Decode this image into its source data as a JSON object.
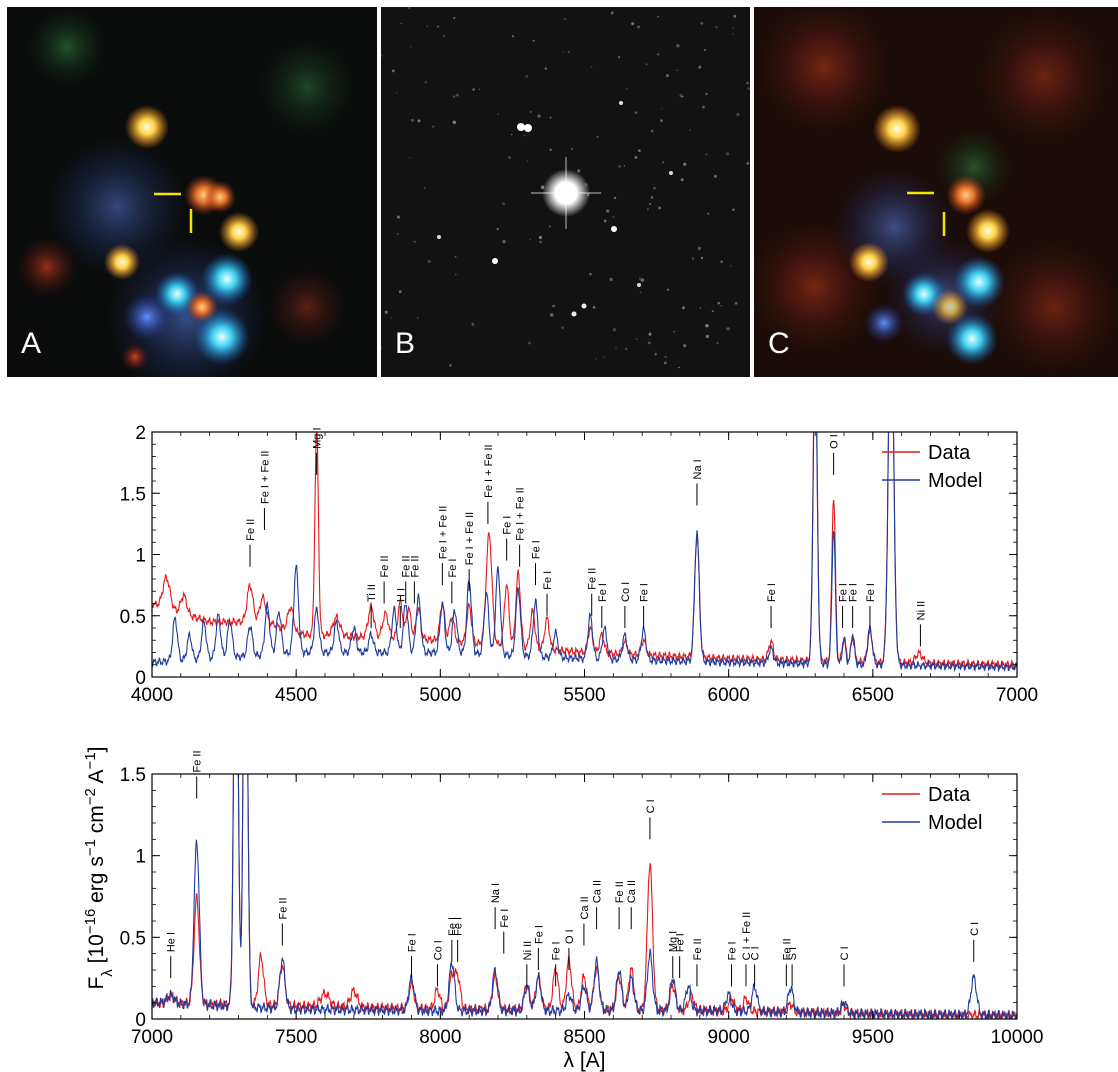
{
  "image_panels": [
    {
      "letter": "A",
      "description_icon": "false-color-field-image"
    },
    {
      "letter": "B",
      "description_icon": "greyscale-star-field-image"
    },
    {
      "letter": "C",
      "description_icon": "false-color-field-image"
    }
  ],
  "colors": {
    "data": "#e31a1c",
    "model": "#1f3b9b",
    "marker": "#f2e600"
  },
  "shared_ylabel": "F_λ [10^-16 erg s^-1 cm^-2 A^-1]",
  "chart_data": [
    {
      "type": "line",
      "xlim": [
        4000,
        7000
      ],
      "ylim": [
        0,
        2
      ],
      "xticks": [
        4000,
        4500,
        5000,
        5500,
        6000,
        6500,
        7000
      ],
      "yticks": [
        0,
        0.5,
        1,
        1.5,
        2
      ],
      "ytick_labels": [
        "0",
        "0.5",
        "1",
        "1.5",
        "2"
      ],
      "legend_position": "top-right",
      "series": [
        {
          "name": "Data",
          "color": "#e31a1c",
          "continuum": [
            [
              4000,
              0.6
            ],
            [
              4200,
              0.45
            ],
            [
              4400,
              0.45
            ],
            [
              4500,
              0.35
            ],
            [
              5000,
              0.3
            ],
            [
              5500,
              0.2
            ],
            [
              6000,
              0.15
            ],
            [
              6500,
              0.12
            ],
            [
              7000,
              0.1
            ]
          ],
          "lines": [
            [
              4050,
              0.25,
              12
            ],
            [
              4110,
              0.15,
              10
            ],
            [
              4340,
              0.3,
              10
            ],
            [
              4384,
              0.2,
              10
            ],
            [
              4481,
              0.2,
              10
            ],
            [
              4571,
              1.7,
              6
            ],
            [
              4640,
              0.15,
              12
            ],
            [
              4760,
              0.25,
              10
            ],
            [
              4810,
              0.2,
              10
            ],
            [
              4861,
              0.3,
              8
            ],
            [
              4890,
              0.25,
              8
            ],
            [
              4924,
              0.25,
              8
            ],
            [
              5007,
              0.3,
              8
            ],
            [
              5040,
              0.2,
              8
            ],
            [
              5100,
              0.3,
              8
            ],
            [
              5169,
              0.9,
              10
            ],
            [
              5230,
              0.5,
              8
            ],
            [
              5270,
              0.6,
              8
            ],
            [
              5320,
              0.3,
              8
            ],
            [
              5370,
              0.25,
              8
            ],
            [
              5520,
              0.2,
              8
            ],
            [
              5560,
              0.15,
              8
            ],
            [
              5640,
              0.1,
              8
            ],
            [
              5705,
              0.12,
              8
            ],
            [
              5890,
              1.0,
              8
            ],
            [
              6147,
              0.15,
              8
            ],
            [
              6300,
              2.6,
              7
            ],
            [
              6364,
              1.35,
              6
            ],
            [
              6400,
              0.2,
              6
            ],
            [
              6430,
              0.2,
              6
            ],
            [
              6490,
              0.25,
              8
            ],
            [
              6563,
              3.0,
              9
            ],
            [
              6660,
              0.08,
              12
            ]
          ]
        },
        {
          "name": "Model",
          "color": "#1f3b9b",
          "continuum": [
            [
              4000,
              0.12
            ],
            [
              4400,
              0.18
            ],
            [
              4500,
              0.2
            ],
            [
              5000,
              0.2
            ],
            [
              5500,
              0.15
            ],
            [
              6000,
              0.12
            ],
            [
              6500,
              0.1
            ],
            [
              7000,
              0.08
            ]
          ],
          "lines": [
            [
              4080,
              0.35,
              8
            ],
            [
              4130,
              0.2,
              8
            ],
            [
              4180,
              0.3,
              8
            ],
            [
              4230,
              0.35,
              8
            ],
            [
              4270,
              0.3,
              8
            ],
            [
              4340,
              0.25,
              8
            ],
            [
              4400,
              0.4,
              8
            ],
            [
              4440,
              0.35,
              8
            ],
            [
              4500,
              0.7,
              8
            ],
            [
              4571,
              0.35,
              8
            ],
            [
              4640,
              0.25,
              8
            ],
            [
              4700,
              0.2,
              8
            ],
            [
              4760,
              0.15,
              8
            ],
            [
              4840,
              0.35,
              8
            ],
            [
              4880,
              0.4,
              8
            ],
            [
              4924,
              0.45,
              8
            ],
            [
              5007,
              0.4,
              8
            ],
            [
              5050,
              0.35,
              8
            ],
            [
              5100,
              0.6,
              8
            ],
            [
              5160,
              0.5,
              8
            ],
            [
              5200,
              0.7,
              8
            ],
            [
              5270,
              0.55,
              8
            ],
            [
              5330,
              0.45,
              8
            ],
            [
              5400,
              0.2,
              8
            ],
            [
              5520,
              0.35,
              8
            ],
            [
              5570,
              0.25,
              8
            ],
            [
              5640,
              0.2,
              8
            ],
            [
              5705,
              0.25,
              8
            ],
            [
              5890,
              1.05,
              8
            ],
            [
              6147,
              0.12,
              8
            ],
            [
              6300,
              2.5,
              7
            ],
            [
              6364,
              1.1,
              6
            ],
            [
              6400,
              0.2,
              6
            ],
            [
              6430,
              0.25,
              6
            ],
            [
              6490,
              0.3,
              8
            ],
            [
              6563,
              3.0,
              9
            ]
          ]
        }
      ],
      "line_ids": [
        {
          "label": "Fe II",
          "x": 4340,
          "y": 0.9
        },
        {
          "label": "Fe I + Fe II",
          "x": 4390,
          "y": 1.2
        },
        {
          "label": "Mg I",
          "x": 4571,
          "y": 1.65
        },
        {
          "label": "Ti II",
          "x": 4760,
          "y": 0.4
        },
        {
          "label": "Fe II",
          "x": 4805,
          "y": 0.6
        },
        {
          "label": "H I",
          "x": 4861,
          "y": 0.4
        },
        {
          "label": "Fe II",
          "x": 4880,
          "y": 0.6
        },
        {
          "label": "Fe II",
          "x": 4910,
          "y": 0.6
        },
        {
          "label": "Fe I + Fe II",
          "x": 5007,
          "y": 0.75
        },
        {
          "label": "Fe I",
          "x": 5040,
          "y": 0.6
        },
        {
          "label": "Fe I + Fe II",
          "x": 5100,
          "y": 0.7
        },
        {
          "label": "Fe I + Fe II",
          "x": 5165,
          "y": 1.25
        },
        {
          "label": "Fe I",
          "x": 5230,
          "y": 0.95
        },
        {
          "label": "Fe I + Fe II",
          "x": 5275,
          "y": 0.9
        },
        {
          "label": "Fe I",
          "x": 5330,
          "y": 0.75
        },
        {
          "label": "Fe I",
          "x": 5370,
          "y": 0.5
        },
        {
          "label": "Fe II",
          "x": 5525,
          "y": 0.5
        },
        {
          "label": "Fe I",
          "x": 5560,
          "y": 0.4
        },
        {
          "label": "Co I",
          "x": 5640,
          "y": 0.4
        },
        {
          "label": "Fe I",
          "x": 5705,
          "y": 0.4
        },
        {
          "label": "Na I",
          "x": 5890,
          "y": 1.4
        },
        {
          "label": "Fe I",
          "x": 6147,
          "y": 0.4
        },
        {
          "label": "O I",
          "x": 6364,
          "y": 1.65
        },
        {
          "label": "Fe I",
          "x": 6395,
          "y": 0.4
        },
        {
          "label": "Fe I",
          "x": 6430,
          "y": 0.4
        },
        {
          "label": "Fe I",
          "x": 6490,
          "y": 0.4
        },
        {
          "label": "Ni II",
          "x": 6665,
          "y": 0.25
        }
      ]
    },
    {
      "type": "line",
      "xlim": [
        7000,
        10000
      ],
      "ylim": [
        0,
        1.5
      ],
      "xticks": [
        7000,
        7500,
        8000,
        8500,
        9000,
        9500,
        10000
      ],
      "yticks": [
        0,
        0.5,
        1,
        1.5
      ],
      "ytick_labels": [
        "0",
        "0.5",
        "1",
        "1.5"
      ],
      "xlabel": "λ [A]",
      "legend_position": "top-right",
      "series": [
        {
          "name": "Data",
          "color": "#e31a1c",
          "continuum": [
            [
              7000,
              0.1
            ],
            [
              7500,
              0.08
            ],
            [
              8000,
              0.06
            ],
            [
              8500,
              0.06
            ],
            [
              9000,
              0.05
            ],
            [
              9500,
              0.03
            ],
            [
              10000,
              0.02
            ]
          ],
          "lines": [
            [
              7065,
              0.05,
              12
            ],
            [
              7155,
              0.65,
              9
            ],
            [
              7291,
              3.0,
              7
            ],
            [
              7324,
              3.0,
              7
            ],
            [
              7378,
              0.3,
              9
            ],
            [
              7452,
              0.25,
              9
            ],
            [
              7600,
              0.08,
              15
            ],
            [
              7700,
              0.1,
              12
            ],
            [
              7900,
              0.15,
              9
            ],
            [
              7990,
              0.12,
              9
            ],
            [
              8040,
              0.2,
              9
            ],
            [
              8060,
              0.2,
              9
            ],
            [
              8190,
              0.2,
              9
            ],
            [
              8300,
              0.15,
              9
            ],
            [
              8340,
              0.2,
              9
            ],
            [
              8400,
              0.25,
              9
            ],
            [
              8446,
              0.3,
              9
            ],
            [
              8498,
              0.2,
              9
            ],
            [
              8542,
              0.25,
              9
            ],
            [
              8620,
              0.2,
              9
            ],
            [
              8662,
              0.25,
              9
            ],
            [
              8727,
              0.9,
              9
            ],
            [
              8806,
              0.15,
              9
            ],
            [
              8870,
              0.1,
              9
            ],
            [
              9010,
              0.08,
              9
            ],
            [
              9060,
              0.08,
              9
            ],
            [
              9215,
              0.05,
              9
            ],
            [
              9400,
              0.05,
              9
            ]
          ]
        },
        {
          "name": "Model",
          "color": "#1f3b9b",
          "continuum": [
            [
              7000,
              0.1
            ],
            [
              7500,
              0.06
            ],
            [
              8000,
              0.05
            ],
            [
              8500,
              0.05
            ],
            [
              9000,
              0.05
            ],
            [
              9500,
              0.03
            ],
            [
              10000,
              0.02
            ]
          ],
          "lines": [
            [
              7065,
              0.05,
              12
            ],
            [
              7155,
              1.0,
              9
            ],
            [
              7291,
              3.0,
              7
            ],
            [
              7324,
              3.0,
              7
            ],
            [
              7452,
              0.3,
              9
            ],
            [
              7900,
              0.2,
              9
            ],
            [
              8040,
              0.3,
              9
            ],
            [
              8190,
              0.25,
              9
            ],
            [
              8300,
              0.15,
              9
            ],
            [
              8340,
              0.2,
              9
            ],
            [
              8446,
              0.1,
              9
            ],
            [
              8498,
              0.15,
              9
            ],
            [
              8542,
              0.3,
              9
            ],
            [
              8620,
              0.25,
              9
            ],
            [
              8662,
              0.2,
              9
            ],
            [
              8727,
              0.35,
              9
            ],
            [
              8806,
              0.2,
              9
            ],
            [
              8860,
              0.15,
              9
            ],
            [
              9000,
              0.1,
              9
            ],
            [
              9090,
              0.15,
              9
            ],
            [
              9215,
              0.15,
              9
            ],
            [
              9400,
              0.07,
              9
            ],
            [
              9850,
              0.23,
              10
            ]
          ]
        }
      ],
      "line_ids": [
        {
          "label": "He I",
          "x": 7065,
          "y": 0.25
        },
        {
          "label": "Fe II",
          "x": 7155,
          "y": 1.35
        },
        {
          "label": "Fe II",
          "x": 7452,
          "y": 0.45
        },
        {
          "label": "Fe I",
          "x": 7900,
          "y": 0.25
        },
        {
          "label": "Co I",
          "x": 7990,
          "y": 0.2
        },
        {
          "label": "Fe I",
          "x": 8040,
          "y": 0.35
        },
        {
          "label": "Fe I",
          "x": 8060,
          "y": 0.35
        },
        {
          "label": "Fe I",
          "x": 8220,
          "y": 0.4
        },
        {
          "label": "Na I",
          "x": 8190,
          "y": 0.55
        },
        {
          "label": "Ni II",
          "x": 8300,
          "y": 0.2
        },
        {
          "label": "Fe I",
          "x": 8340,
          "y": 0.3
        },
        {
          "label": "Fe I",
          "x": 8400,
          "y": 0.2
        },
        {
          "label": "O I",
          "x": 8446,
          "y": 0.3
        },
        {
          "label": "Ca II",
          "x": 8498,
          "y": 0.45
        },
        {
          "label": "Ca II",
          "x": 8542,
          "y": 0.55
        },
        {
          "label": "Fe II",
          "x": 8620,
          "y": 0.55
        },
        {
          "label": "Ca II",
          "x": 8662,
          "y": 0.55
        },
        {
          "label": "C I",
          "x": 8727,
          "y": 1.1
        },
        {
          "label": "Mg I",
          "x": 8806,
          "y": 0.25
        },
        {
          "label": "Fe I",
          "x": 8830,
          "y": 0.25
        },
        {
          "label": "Fe II",
          "x": 8890,
          "y": 0.2
        },
        {
          "label": "Fe I",
          "x": 9010,
          "y": 0.2
        },
        {
          "label": "C I + Fe II",
          "x": 9060,
          "y": 0.2
        },
        {
          "label": "C I",
          "x": 9090,
          "y": 0.2
        },
        {
          "label": "Fe II",
          "x": 9200,
          "y": 0.2
        },
        {
          "label": "S I",
          "x": 9220,
          "y": 0.2
        },
        {
          "label": "C I",
          "x": 9400,
          "y": 0.2
        },
        {
          "label": "C I",
          "x": 9850,
          "y": 0.35
        }
      ]
    }
  ]
}
